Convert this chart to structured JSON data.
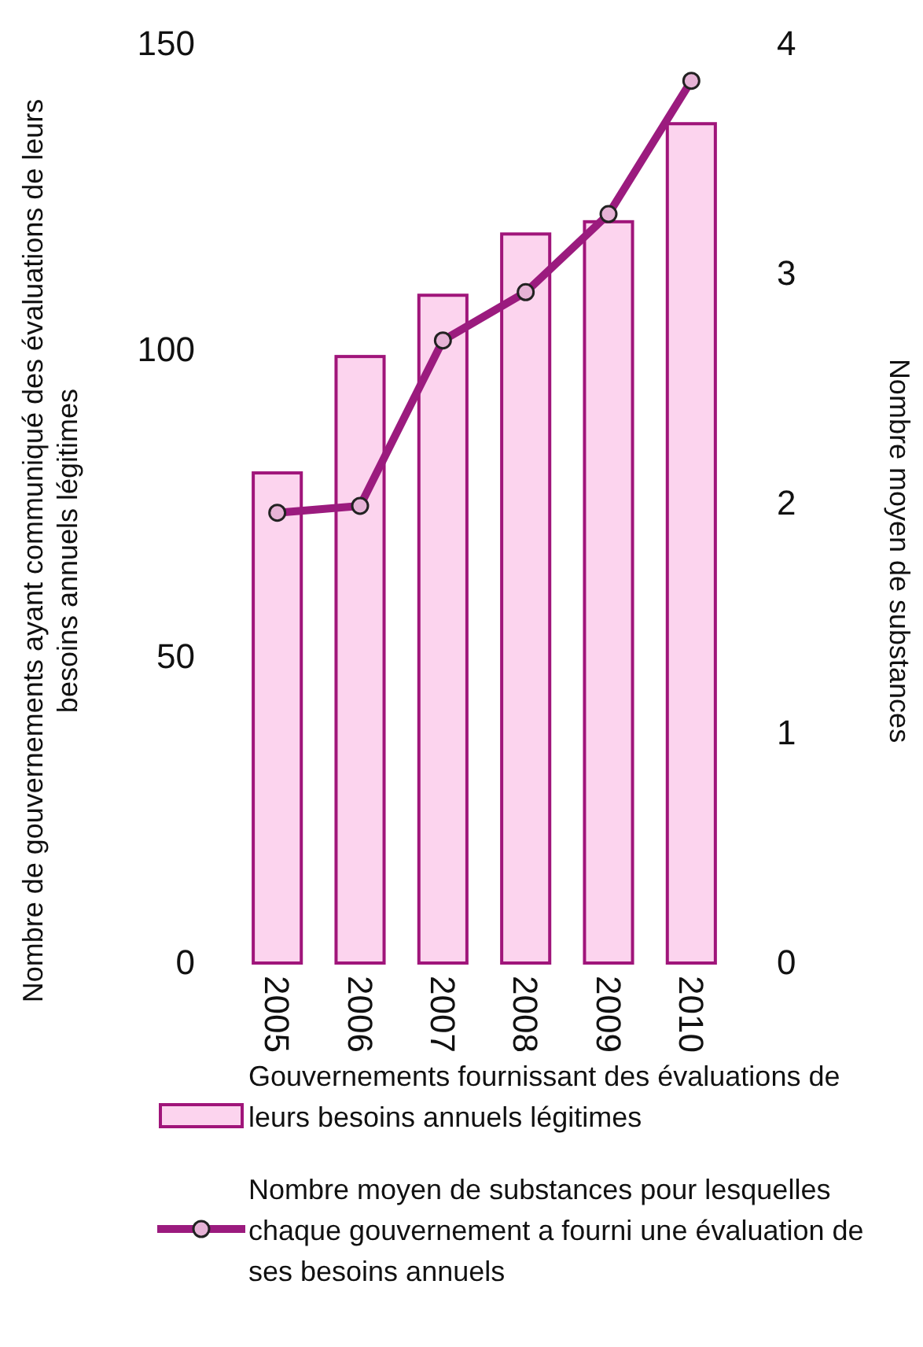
{
  "chart_data": {
    "type": "bar",
    "categories": [
      "2005",
      "2006",
      "2007",
      "2008",
      "2009",
      "2010"
    ],
    "ylabel": "Nombre de gouvernements ayant communiqué des évaluations de leurs besoins annuels légitimes",
    "y2label": "Nombre moyen de substances",
    "ylim": [
      0,
      150
    ],
    "yticks": [
      0,
      50,
      100,
      150
    ],
    "y2lim": [
      0,
      4
    ],
    "y2ticks": [
      0,
      1,
      2,
      3,
      4
    ],
    "series": [
      {
        "name": "Gouvernements fournissant des évaluations de leurs besoins annuels légitimes",
        "color": "#fcd4ee",
        "values": [
          80,
          99,
          109,
          119,
          121,
          137
        ]
      },
      {
        "name": "Nombre moyen de substances pour lesquelles chaque gouvernement a fourni une évaluation de ses besoins annuels",
        "type": "line",
        "axis": "y2",
        "color": "#9b1b7e",
        "values": [
          1.96,
          1.99,
          2.71,
          2.92,
          3.26,
          3.84
        ]
      }
    ],
    "marker": "circle",
    "legend": "bottom",
    "grid": false
  }
}
